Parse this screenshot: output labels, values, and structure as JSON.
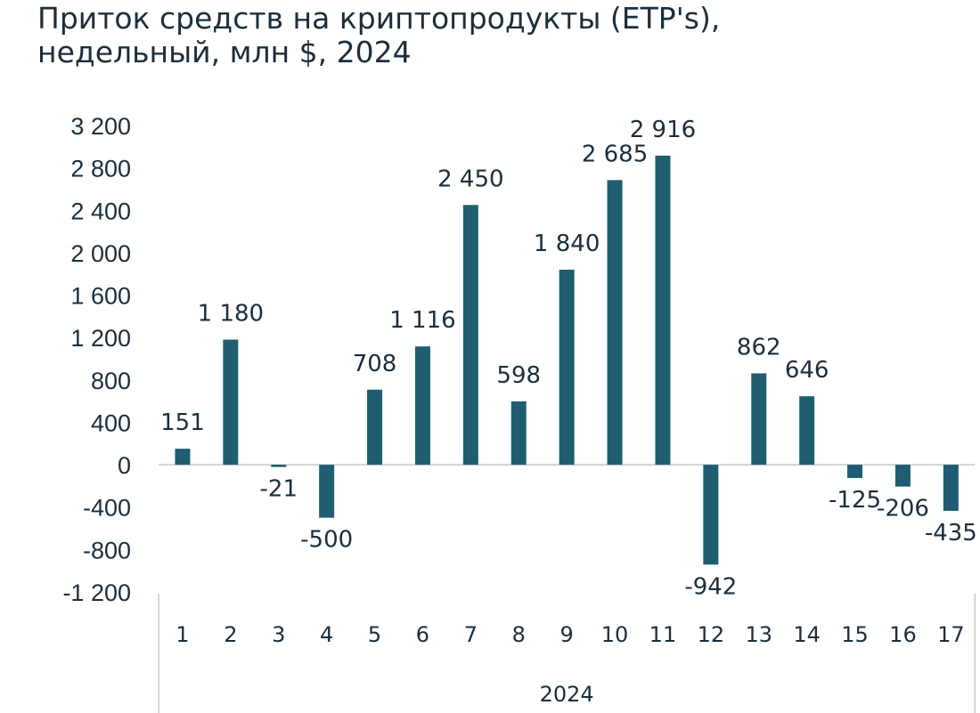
{
  "title_lines": [
    "Приток средств на криптопродукты (ETP's),",
    "недельный, млн $, 2024"
  ],
  "chart_data": {
    "type": "bar",
    "title": "Приток средств на криптопродукты (ETP's), недельный, млн $, 2024",
    "categories": [
      "1",
      "2",
      "3",
      "4",
      "5",
      "6",
      "7",
      "8",
      "9",
      "10",
      "11",
      "12",
      "13",
      "14",
      "15",
      "16",
      "17"
    ],
    "category_group": "2024",
    "values": [
      151,
      1180,
      -21,
      -500,
      708,
      1116,
      2450,
      598,
      1840,
      2685,
      2916,
      -942,
      862,
      646,
      -125,
      -206,
      -435
    ],
    "data_labels": [
      "151",
      "1 180",
      "-21",
      "-500",
      "708",
      "1 116",
      "2 450",
      "598",
      "1 840",
      "2 685",
      "2 916",
      "-942",
      "862",
      "646",
      "-125",
      "-206",
      "-435"
    ],
    "ylim": [
      -1200,
      3200
    ],
    "yticks": [
      3200,
      2800,
      2400,
      2000,
      1600,
      1200,
      800,
      400,
      0,
      -400,
      -800,
      -1200
    ],
    "ytick_labels": [
      "3 200",
      "2 800",
      "2 400",
      "2 000",
      "1 600",
      "1 200",
      "800",
      "400",
      "0",
      "-400",
      "-800",
      "-1 200"
    ],
    "xlabel": "",
    "ylabel": "",
    "grid": false,
    "legend": "none",
    "bar_color": "#1f5d72"
  }
}
